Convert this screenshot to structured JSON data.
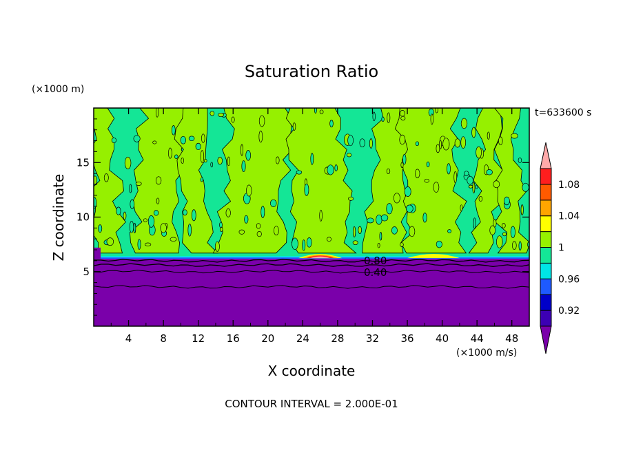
{
  "chart_data": {
    "type": "heatmap",
    "title": "Saturation Ratio",
    "xlabel": "X coordinate",
    "ylabel": "Z coordinate",
    "x_unit": "(×1000 m/s)",
    "y_unit": "(×1000 m)",
    "time_label": "t=633600 s",
    "footer": "CONTOUR INTERVAL = 2.000E-01",
    "xlim": [
      0,
      50
    ],
    "ylim": [
      0,
      20
    ],
    "x_ticks": [
      4,
      8,
      12,
      16,
      20,
      24,
      28,
      32,
      36,
      40,
      44,
      48
    ],
    "x_tick_labels": [
      "4",
      "8",
      "12",
      "16",
      "20",
      "24",
      "28",
      "32",
      "36",
      "40",
      "44",
      "48"
    ],
    "y_ticks": [
      5,
      10,
      15
    ],
    "y_tick_labels": [
      "5",
      "10",
      "15"
    ],
    "colorbar": {
      "levels": [
        0.92,
        0.94,
        0.96,
        0.98,
        1.0,
        1.02,
        1.04,
        1.06,
        1.08,
        1.1
      ],
      "labels": [
        "0.92",
        "0.96",
        "1",
        "1.04",
        "1.08"
      ],
      "label_levels": [
        0.92,
        0.96,
        1.0,
        1.04,
        1.08
      ],
      "colors": [
        "#7a00aa",
        "#3c00b4",
        "#0000c8",
        "#1e5aff",
        "#00e6e6",
        "#14e696",
        "#96f000",
        "#ffff00",
        "#ffa500",
        "#ff5a00",
        "#ff1e1e",
        "#ffaaaa"
      ]
    },
    "regions": {
      "lower_layer": {
        "z_top": 6.3,
        "value": "below 0.92",
        "color": "#7a00aa"
      },
      "upper_layer": {
        "z_bottom": 6.3,
        "z_top": 20,
        "values": [
          "0.98-1.0",
          "1.0-1.02"
        ],
        "colors": [
          "#14e696",
          "#96f000"
        ]
      },
      "warm_patches": [
        {
          "x": [
            23.5,
            28.5
          ],
          "z": 6.6,
          "peak": 1.06
        },
        {
          "x": [
            36.0,
            42.0
          ],
          "z": 6.5,
          "peak": 1.04
        }
      ]
    },
    "contour_labels": [
      {
        "text": "0.80",
        "level": 0.8,
        "x": 31.5,
        "z": 6.0
      },
      {
        "text": "0.40",
        "level": 0.4,
        "x": 31.5,
        "z": 5.0
      }
    ],
    "contour_lines": [
      {
        "level": 0.8,
        "z": 6.0
      },
      {
        "level": 0.6,
        "z": 5.6
      },
      {
        "level": 0.4,
        "z": 5.0
      },
      {
        "level": 0.2,
        "z": 3.6
      }
    ]
  }
}
